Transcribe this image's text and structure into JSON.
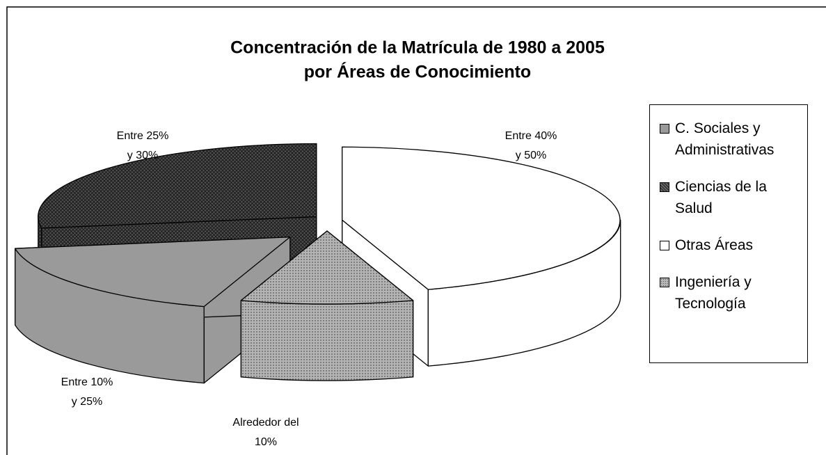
{
  "chart_data": {
    "type": "pie3d",
    "title": [
      "Concentración de la Matrícula de 1980 a 2005",
      "por Áreas de Conocimiento"
    ],
    "categories": [
      "C. Sociales y Administrativas",
      "Ciencias de la Salud",
      "Otras Áreas",
      "Ingeniería y Tecnología"
    ],
    "values": [
      17.5,
      27.5,
      45,
      10
    ],
    "colors": [
      "#9a9a9a",
      "#505050",
      "#ffffff",
      "#b4b4b4"
    ],
    "patterns": [
      "solid",
      "crosshatch",
      "solid",
      "dots"
    ],
    "slice_labels": [
      [
        "Entre 10%",
        "y 25%"
      ],
      [
        "Entre 25%",
        "y 30%"
      ],
      [
        "Entre 40%",
        "y 50%"
      ],
      [
        "Alrededor del",
        "10%"
      ]
    ],
    "legend": "right"
  }
}
